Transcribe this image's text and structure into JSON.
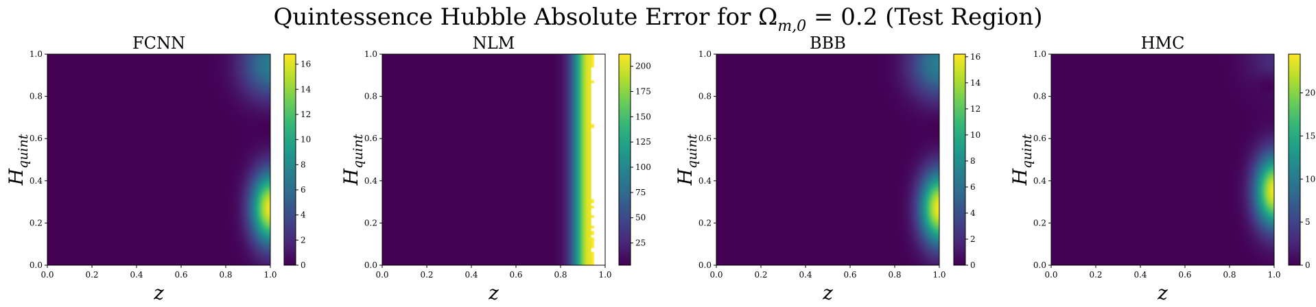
{
  "title": "Quintessence Hubble Absolute Error for Ωm,0 = 0.2 (Test Region)",
  "title_parts": {
    "pre": "Quintessence Hubble Absolute Error for Ω",
    "sub": "m,0",
    "post": " = 0.2 (Test Region)"
  },
  "colormap": "viridis",
  "colors": {
    "viridis": [
      "#440154",
      "#482878",
      "#3e4989",
      "#31688e",
      "#26828e",
      "#1f9e89",
      "#35b779",
      "#6ece58",
      "#b5de2b",
      "#fde725"
    ]
  },
  "chart_data": [
    {
      "type": "heatmap",
      "title": "FCNN",
      "xlabel": "z",
      "ylabel_main": "H",
      "ylabel_sub": "quint",
      "xlim": [
        0,
        1
      ],
      "ylim": [
        0,
        1
      ],
      "xticks": [
        "0.0",
        "0.2",
        "0.4",
        "0.6",
        "0.8",
        "1.0"
      ],
      "yticks": [
        "0.0",
        "0.2",
        "0.4",
        "0.6",
        "0.8",
        "1.0"
      ],
      "colorbar": {
        "min": 0,
        "max": 16.8,
        "ticks": [
          0,
          2,
          4,
          6,
          8,
          10,
          12,
          14,
          16
        ]
      },
      "peak": {
        "z": 1.0,
        "H": 0.27,
        "value": 16.5
      },
      "secondary_peak": {
        "z": 1.0,
        "H": 0.95,
        "value": 7
      },
      "low_valley": {
        "z": 0.98,
        "H": 0.65
      },
      "white_region": null
    },
    {
      "type": "heatmap",
      "title": "NLM",
      "xlabel": "z",
      "ylabel_main": "H",
      "ylabel_sub": "quint",
      "xlim": [
        0,
        1
      ],
      "ylim": [
        0,
        1
      ],
      "xticks": [
        "0.0",
        "0.2",
        "0.4",
        "0.6",
        "0.8",
        "1.0"
      ],
      "yticks": [
        "0.0",
        "0.2",
        "0.4",
        "0.6",
        "0.8",
        "1.0"
      ],
      "colorbar": {
        "min": 3,
        "max": 212,
        "ticks": [
          25,
          50,
          75,
          100,
          125,
          150,
          175,
          200
        ]
      },
      "peak": {
        "z": 0.93,
        "H": 0.5,
        "value": 205
      },
      "secondary_peak": null,
      "low_valley": null,
      "white_region": {
        "z_start": 0.94,
        "z_end": 1.0
      }
    },
    {
      "type": "heatmap",
      "title": "BBB",
      "xlabel": "z",
      "ylabel_main": "H",
      "ylabel_sub": "quint",
      "xlim": [
        0,
        1
      ],
      "ylim": [
        0,
        1
      ],
      "xticks": [
        "0.0",
        "0.2",
        "0.4",
        "0.6",
        "0.8",
        "1.0"
      ],
      "yticks": [
        "0.0",
        "0.2",
        "0.4",
        "0.6",
        "0.8",
        "1.0"
      ],
      "colorbar": {
        "min": 0,
        "max": 16.2,
        "ticks": [
          0,
          2,
          4,
          6,
          8,
          10,
          12,
          14,
          16
        ]
      },
      "peak": {
        "z": 1.0,
        "H": 0.27,
        "value": 16
      },
      "secondary_peak": {
        "z": 1.0,
        "H": 0.95,
        "value": 7
      },
      "low_valley": {
        "z": 0.98,
        "H": 0.65
      },
      "white_region": null
    },
    {
      "type": "heatmap",
      "title": "HMC",
      "xlabel": "z",
      "ylabel_main": "H",
      "ylabel_sub": "quint",
      "xlim": [
        0,
        1
      ],
      "ylim": [
        0,
        1
      ],
      "xticks": [
        "0.0",
        "0.2",
        "0.4",
        "0.6",
        "0.8",
        "1.0"
      ],
      "yticks": [
        "0.0",
        "0.2",
        "0.4",
        "0.6",
        "0.8",
        "1.0"
      ],
      "colorbar": {
        "min": 0,
        "max": 24.5,
        "ticks": [
          0,
          5,
          10,
          15,
          20
        ]
      },
      "peak": {
        "z": 1.0,
        "H": 0.35,
        "value": 24
      },
      "secondary_peak": {
        "z": 1.0,
        "H": 0.98,
        "value": 3
      },
      "low_valley": {
        "z": 0.97,
        "H": 0.85
      },
      "white_region": null
    }
  ]
}
